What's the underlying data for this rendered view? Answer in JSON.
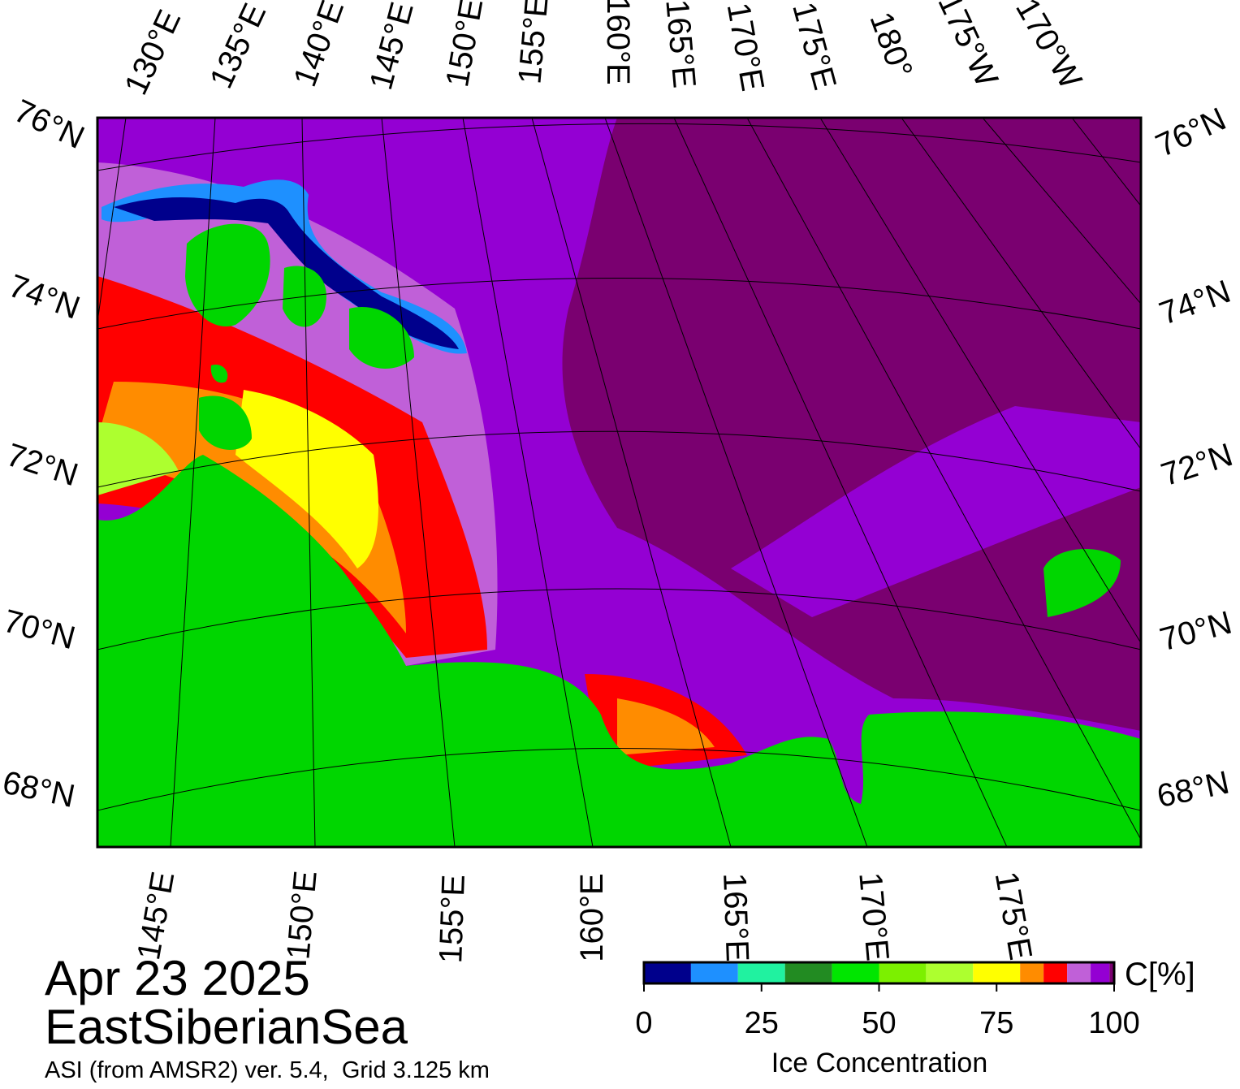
{
  "date": "Apr 23 2025",
  "region": "EastSiberianSea",
  "source": "ASI (from AMSR2) ver. 5.4,  Grid 3.125 km",
  "map": {
    "top_labels": [
      "130°E",
      "135°E",
      "140°E",
      "145°E",
      "150°E",
      "155°E",
      "160°E",
      "165°E",
      "170°E",
      "175°E",
      "180°",
      "175°W",
      "170°W"
    ],
    "left_labels": [
      "76°N",
      "74°N",
      "72°N",
      "70°N",
      "68°N"
    ],
    "right_labels": [
      "76°N",
      "74°N",
      "72°N",
      "70°N",
      "68°N"
    ],
    "bottom_labels": [
      "145°E",
      "150°E",
      "155°E",
      "160°E",
      "165°E",
      "170°E",
      "175°E"
    ]
  },
  "colorbar": {
    "title": "Ice Concentration",
    "unit": "C[%]",
    "range": [
      0,
      100
    ],
    "ticks": [
      0,
      25,
      50,
      75,
      100
    ],
    "bounds": [
      0,
      10,
      20,
      30,
      40,
      50,
      60,
      70,
      80,
      85,
      90,
      95,
      99,
      100
    ],
    "colors": [
      "#00008c",
      "#1e90ff",
      "#20f2a0",
      "#228b22",
      "#00e600",
      "#7cf000",
      "#adff2f",
      "#ffff00",
      "#ff8c00",
      "#ff0000",
      "#c060d8",
      "#9400d3",
      "#7a0070"
    ]
  }
}
